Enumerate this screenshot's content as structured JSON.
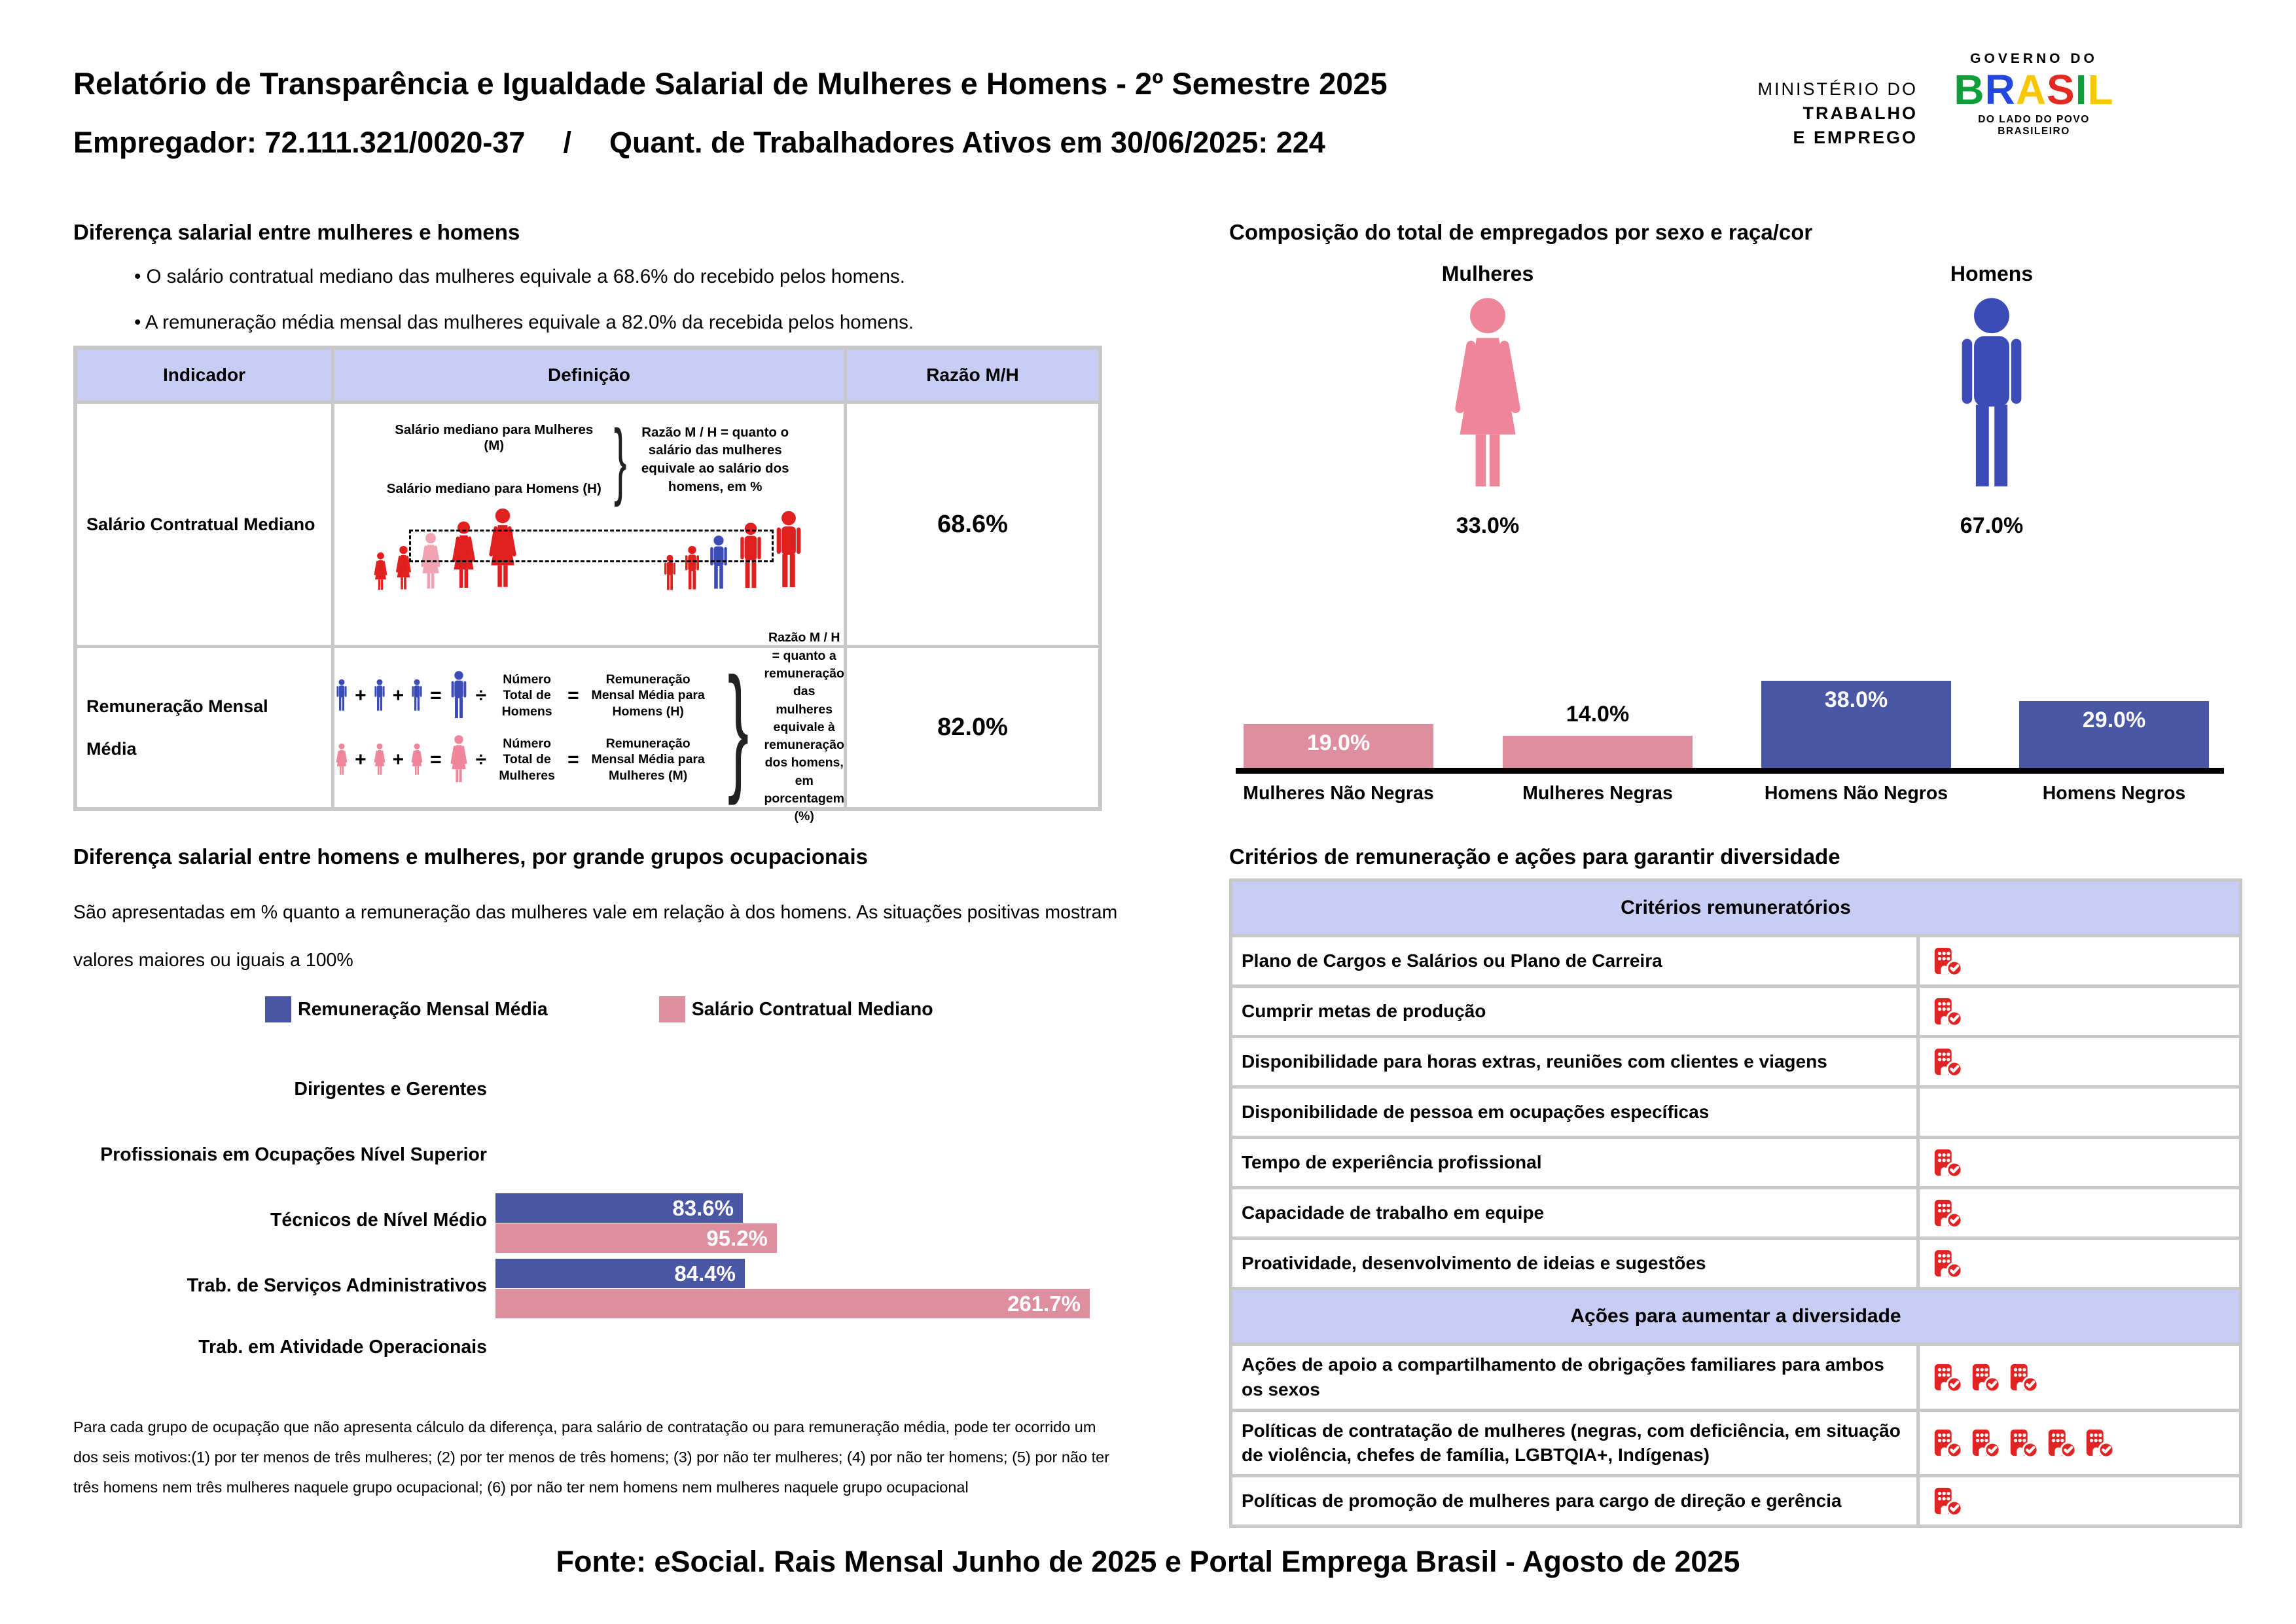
{
  "header": {
    "title": "Relatório de Transparência e Igualdade Salarial de Mulheres e Homens - 2º Semestre 2025",
    "employer": "Empregador: 72.111.321/0020-37",
    "separator": "/",
    "workers": "Quant. de Trabalhadores Ativos em 30/06/2025: 224",
    "ministry_logo": {
      "line1": "MINISTÉRIO DO",
      "line2": "TRABALHO",
      "line3": "E EMPREGO"
    },
    "gov_logo": {
      "top": "GOVERNO DO",
      "name": "BRASIL",
      "letter_colors": [
        "#0f9e39",
        "#2446e0",
        "#f7c800",
        "#e22a22",
        "#0f9e39",
        "#f7c800"
      ],
      "tagline": "DO LADO DO POVO BRASILEIRO"
    }
  },
  "salary_gap": {
    "heading": "Diferença salarial entre mulheres e homens",
    "bullets": [
      "O salário contratual mediano das mulheres equivale a 68.6% do recebido pelos homens.",
      "A remuneração média mensal das mulheres equivale a 82.0% da recebida pelos homens."
    ],
    "table_headers": [
      "Indicador",
      "Definição",
      "Razão M/H"
    ],
    "row1": {
      "indicator": "Salário Contratual Mediano",
      "ratio": "68.6%",
      "line1": "Salário mediano para Mulheres (M)",
      "line2": "Salário mediano para Homens (H)",
      "note": "Razão M / H = quanto o salário das mulheres equivale ao salário dos homens, em %"
    },
    "row2": {
      "indicator": "Remuneração Mensal Média",
      "ratio": "82.0%",
      "men_count": "Número Total de Homens",
      "men_result": "Remuneração Mensal Média para Homens (H)",
      "women_count": "Número Total de Mulheres",
      "women_result": "Remuneração Mensal Média para Mulheres (M)",
      "plus": "+",
      "equals": "=",
      "divide": "÷",
      "note": "Razão M / H = quanto a remuneração das mulheres equivale à remuneração dos homens, em porcentagem (%)"
    }
  },
  "composition": {
    "heading": "Composição do total de empregados por sexo e raça/cor",
    "female_label": "Mulheres",
    "female_value": "33.0%",
    "male_label": "Homens",
    "male_value": "67.0%"
  },
  "occupation_gap": {
    "heading": "Diferença salarial entre homens e mulheres, por grande grupos ocupacionais",
    "desc": "São apresentadas em % quanto a remuneração das mulheres vale em relação à dos homens. As situações positivas mostram valores maiores ou iguais a 100%",
    "legend": [
      {
        "label": "Remuneração Mensal Média",
        "color": "blue"
      },
      {
        "label": "Salário Contratual Mediano",
        "color": "pink"
      }
    ],
    "footnote": "Para cada grupo de ocupação que não apresenta cálculo da diferença, para salário de contratação ou para remuneração média, pode ter ocorrido um dos seis motivos:(1) por ter menos de três mulheres; (2) por ter menos de três homens; (3) por não ter mulheres; (4) por não ter homens; (5) por não ter três homens nem três mulheres naquele grupo ocupacional; (6) por não ter nem homens nem mulheres naquele grupo ocupacional"
  },
  "chart_data": [
    {
      "type": "bar",
      "title": "Composição do total de empregados por sexo e raça/cor",
      "categories": [
        "Mulheres Não Negras",
        "Mulheres Negras",
        "Homens Não Negros",
        "Homens Negros"
      ],
      "values": [
        19.0,
        14.0,
        38.0,
        29.0
      ],
      "labels": [
        "19.0%",
        "14.0%",
        "38.0%",
        "29.0%"
      ],
      "bar_colors": [
        "pink",
        "pink",
        "blue",
        "blue"
      ],
      "label_inside": [
        true,
        false,
        true,
        true
      ],
      "xlabel": "",
      "ylabel": "",
      "ylim": [
        0,
        40
      ],
      "grid": false
    },
    {
      "type": "bar-horizontal",
      "title": "Diferença salarial entre homens e mulheres, por grande grupos ocupacionais",
      "categories": [
        "Dirigentes e Gerentes",
        "Profissionais em Ocupações Nível Superior",
        "Técnicos de Nível Médio",
        "Trab. de Serviços Administrativos",
        "Trab. em Atividade Operacionais"
      ],
      "series": [
        {
          "name": "Remuneração Mensal Média",
          "color": "blue",
          "values": [
            null,
            null,
            83.6,
            84.4,
            null
          ],
          "labels": [
            null,
            null,
            "83.6%",
            "84.4%",
            null
          ]
        },
        {
          "name": "Salário Contratual Mediano",
          "color": "pink",
          "values": [
            null,
            null,
            95.2,
            261.7,
            null
          ],
          "labels": [
            null,
            null,
            "95.2%",
            "261.7%",
            null
          ]
        }
      ],
      "xlim": [
        0,
        200
      ],
      "grid": false,
      "legend_position": "top"
    }
  ],
  "criteria": {
    "heading": "Critérios de remuneração e ações para garantir diversidade",
    "sections": [
      {
        "header": "Critérios remuneratórios",
        "rows": [
          {
            "label": "Plano de Cargos e Salários ou Plano de Carreira",
            "icons": 1
          },
          {
            "label": "Cumprir metas de produção",
            "icons": 1
          },
          {
            "label": "Disponibilidade para horas extras, reuniões com clientes e viagens",
            "icons": 1
          },
          {
            "label": "Disponibilidade de pessoa em ocupações específicas",
            "icons": 0
          },
          {
            "label": "Tempo de experiência profissional",
            "icons": 1
          },
          {
            "label": "Capacidade de trabalho em equipe",
            "icons": 1
          },
          {
            "label": "Proatividade, desenvolvimento de ideias e sugestões",
            "icons": 1
          }
        ]
      },
      {
        "header": "Ações para aumentar a diversidade",
        "rows": [
          {
            "label": "Ações de apoio a compartilhamento de obrigações familiares para ambos os sexos",
            "icons": 3
          },
          {
            "label": "Políticas de contratação de mulheres (negras, com deficiência, em situação de violência, chefes de família, LGBTQIA+, Indígenas)",
            "icons": 5
          },
          {
            "label": "Políticas de promoção de mulheres para cargo de direção e gerência",
            "icons": 1
          }
        ]
      }
    ]
  },
  "footer": "Fonte: eSocial. Rais Mensal Junho de 2025 e Portal Emprega Brasil - Agosto de 2025",
  "colors": {
    "bar_blue": "#4a57a5",
    "bar_pink": "#dd8fa0",
    "icon_blue": "#3b4cb8",
    "icon_pink": "#ee8598",
    "icon_red": "#e02424",
    "pict_red": "#e01f1f",
    "pict_pink": "#f0a3b2",
    "lavender": "#c9cdf4",
    "table_gray": "#c8c8c8"
  }
}
